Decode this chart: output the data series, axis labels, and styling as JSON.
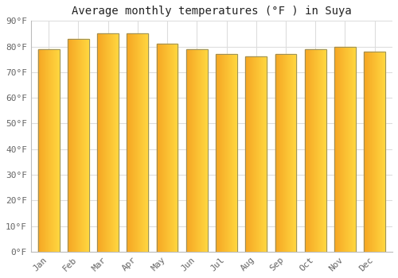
{
  "title": "Average monthly temperatures (°F ) in Suya",
  "months": [
    "Jan",
    "Feb",
    "Mar",
    "Apr",
    "May",
    "Jun",
    "Jul",
    "Aug",
    "Sep",
    "Oct",
    "Nov",
    "Dec"
  ],
  "values": [
    79,
    83,
    85,
    85,
    81,
    79,
    77,
    76,
    77,
    79,
    80,
    78
  ],
  "ylim": [
    0,
    90
  ],
  "yticks": [
    0,
    10,
    20,
    30,
    40,
    50,
    60,
    70,
    80,
    90
  ],
  "bar_color_left": "#F5A623",
  "bar_color_right": "#FFD740",
  "bar_edge_color": "#888866",
  "background_color": "#FFFFFF",
  "grid_color": "#DDDDDD",
  "title_fontsize": 10,
  "tick_fontsize": 8,
  "bar_width": 0.72
}
